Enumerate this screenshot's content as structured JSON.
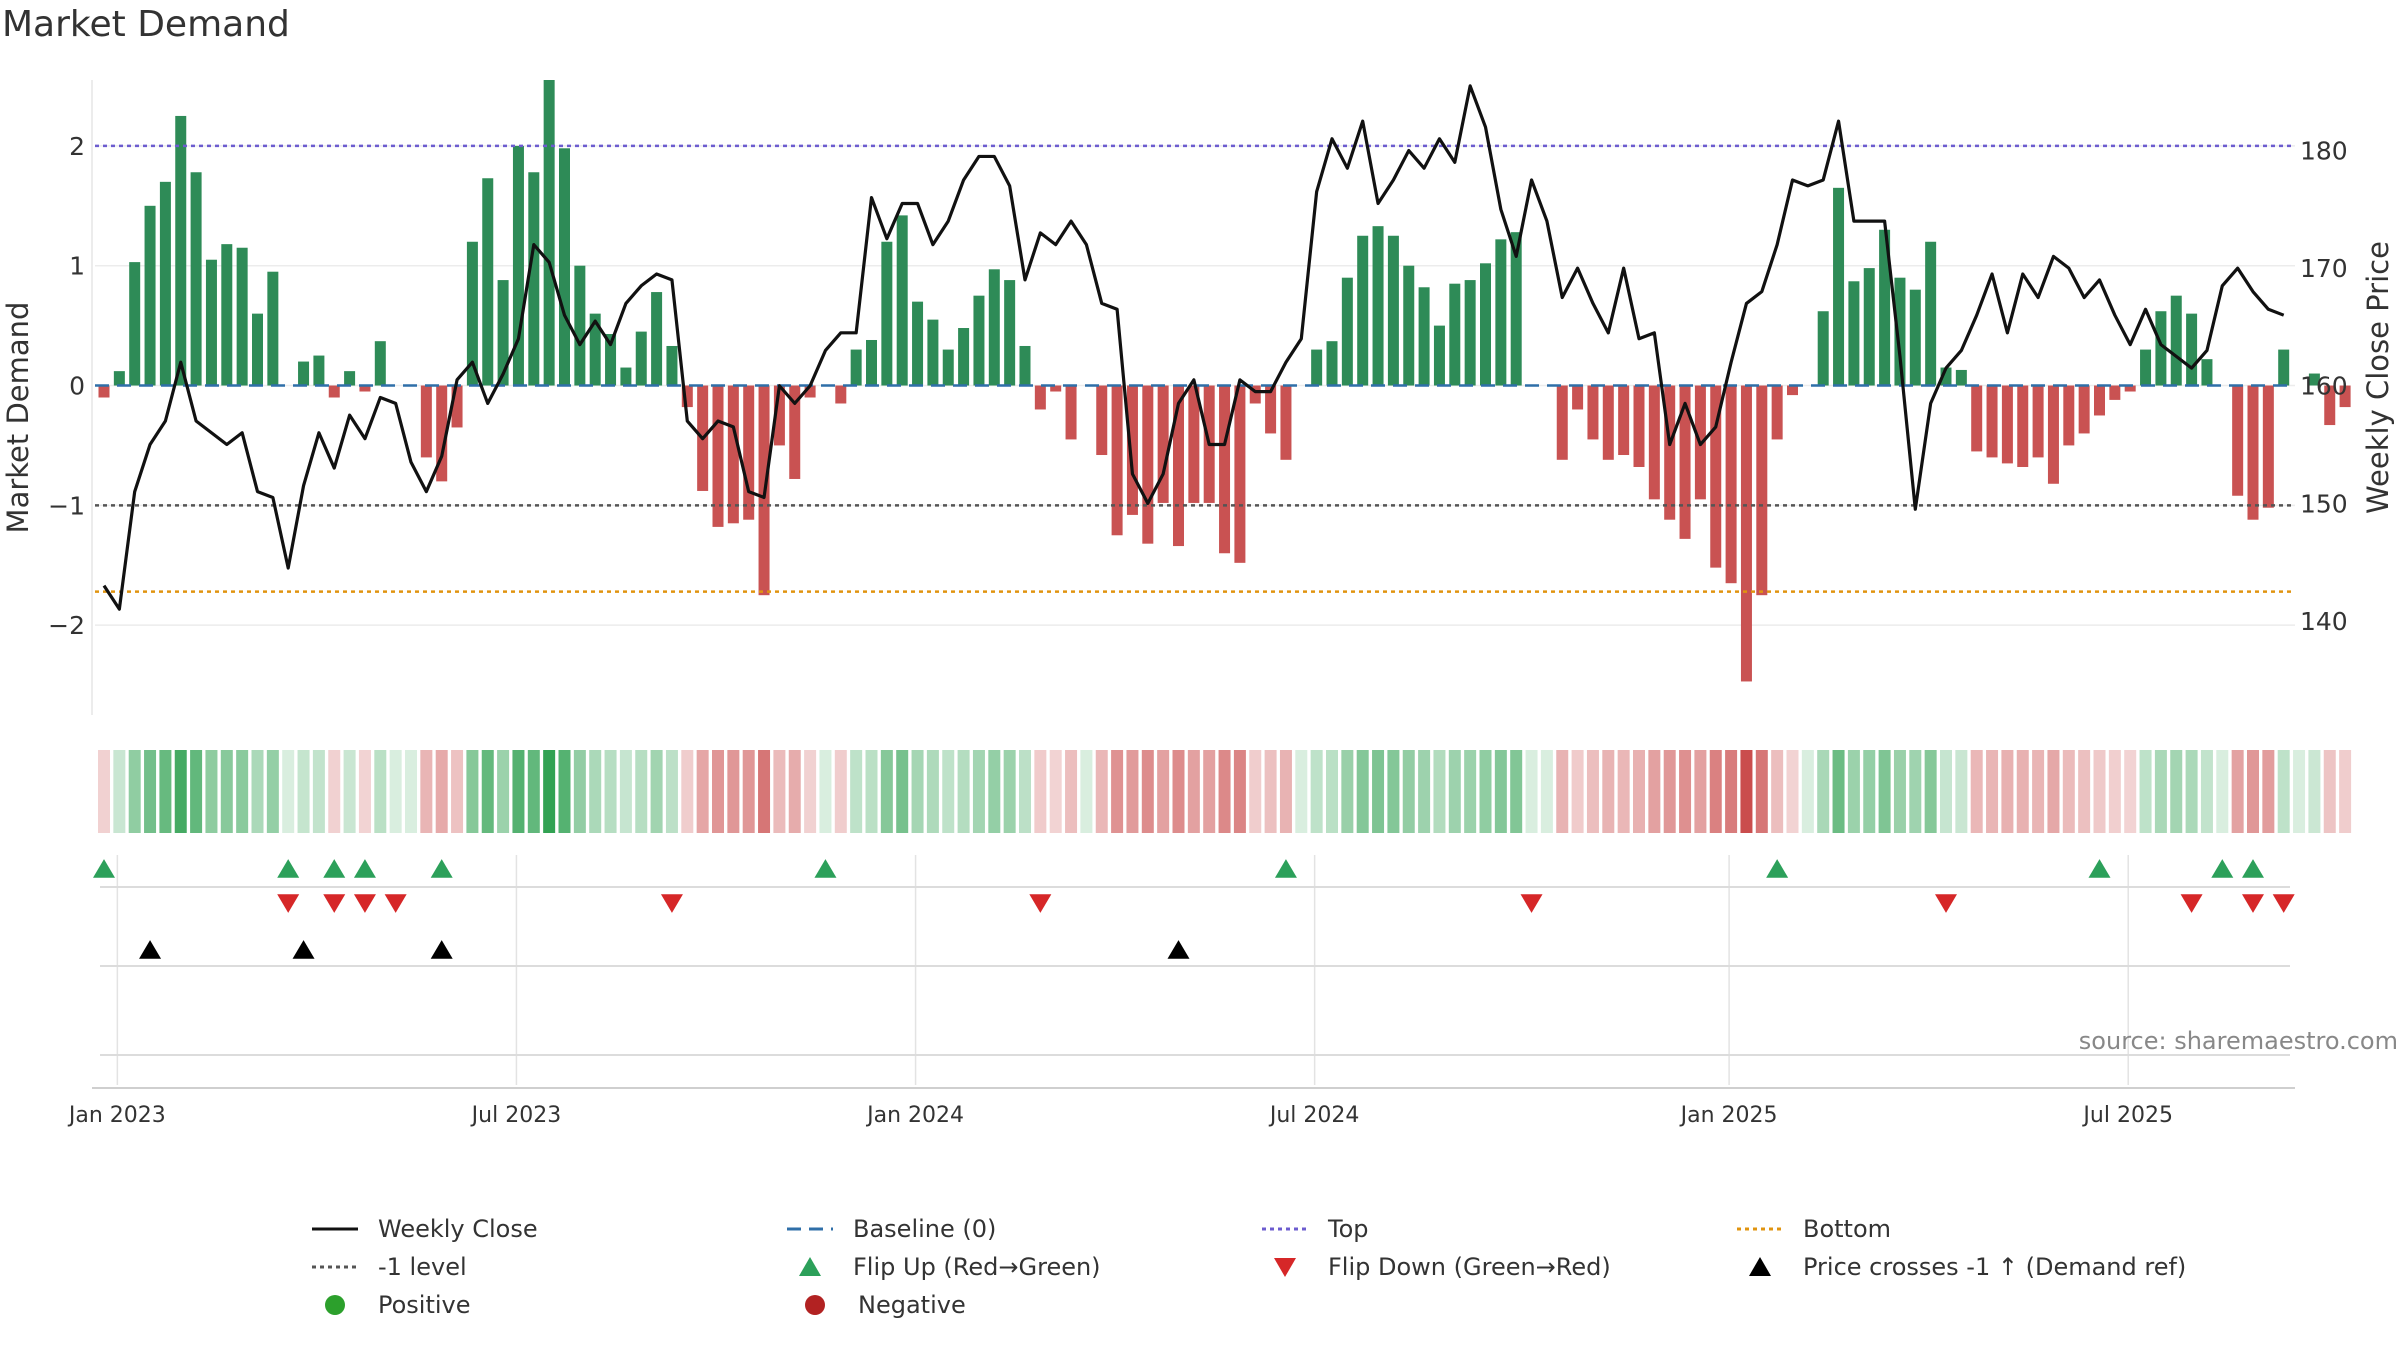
{
  "title": "Market Demand",
  "source": "source: sharemaestro.com",
  "chart_data": {
    "type": "bar",
    "title": "Market Demand",
    "ylabel_left": "Market Demand",
    "ylabel_right": "Weekly Close Price",
    "ylim_left": [
      -2.75,
      2.55
    ],
    "ylim_right": [
      132,
      186
    ],
    "yticks_left": [
      -2,
      -1,
      0,
      1,
      2
    ],
    "ytick_labels_left": [
      "−2",
      "−1",
      "0",
      "1",
      "2"
    ],
    "yticks_right": [
      140,
      150,
      160,
      170,
      180
    ],
    "reference_lines": {
      "top": 2,
      "level_minus1": -1,
      "bottom": -1.72,
      "baseline": 0
    },
    "x_ticks": [
      {
        "week": 1,
        "label": "Jan 2023"
      },
      {
        "week": 27,
        "label": "Jul 2023"
      },
      {
        "week": 53,
        "label": "Jan 2024"
      },
      {
        "week": 79,
        "label": "Jul 2024"
      },
      {
        "week": 106,
        "label": "Jan 2025"
      },
      {
        "week": 132,
        "label": "Jul 2025"
      }
    ],
    "demand": [
      -0.1,
      0.12,
      1.03,
      1.5,
      1.7,
      2.25,
      1.78,
      1.05,
      1.18,
      1.15,
      0.6,
      0.95,
      0,
      0.2,
      0.25,
      -0.1,
      0.12,
      -0.05,
      0.37,
      0,
      0,
      -0.6,
      -0.8,
      -0.35,
      1.2,
      1.73,
      0.88,
      2.0,
      1.78,
      2.55,
      1.98,
      1,
      0.6,
      0.43,
      0.15,
      0.45,
      0.78,
      0.33,
      -0.18,
      -0.88,
      -1.18,
      -1.15,
      -1.12,
      -1.75,
      -0.5,
      -0.78,
      -0.1,
      0,
      -0.15,
      0.3,
      0.38,
      1.2,
      1.42,
      0.7,
      0.55,
      0.3,
      0.48,
      0.75,
      0.97,
      0.88,
      0.33,
      -0.2,
      -0.05,
      -0.45,
      0,
      -0.58,
      -1.25,
      -1.08,
      -1.32,
      -0.98,
      -1.34,
      -0.98,
      -0.98,
      -1.4,
      -1.48,
      -0.15,
      -0.4,
      -0.62,
      0,
      0.3,
      0.37,
      0.9,
      1.25,
      1.33,
      1.25,
      1.0,
      0.82,
      0.5,
      0.85,
      0.88,
      1.02,
      1.22,
      1.28,
      0,
      0,
      -0.62,
      -0.2,
      -0.45,
      -0.62,
      -0.58,
      -0.68,
      -0.95,
      -1.12,
      -1.28,
      -0.95,
      -1.52,
      -1.65,
      -2.47,
      -1.75,
      -0.45,
      -0.08,
      0,
      0.62,
      1.65,
      0.87,
      0.98,
      1.3,
      0.9,
      0.8,
      1.2,
      0.15,
      0.13,
      -0.55,
      -0.6,
      -0.65,
      -0.68,
      -0.6,
      -0.82,
      -0.5,
      -0.4,
      -0.25,
      -0.12,
      -0.05,
      0.3,
      0.62,
      0.75,
      0.6,
      0.22,
      0,
      -0.92,
      -1.12,
      -1.02,
      0.3,
      0,
      0.1,
      -0.33,
      -0.18
    ],
    "weekly_close": [
      143,
      141,
      151,
      155,
      157,
      162,
      157,
      156,
      155,
      156,
      151,
      150.5,
      144.5,
      151.5,
      156,
      153,
      157.5,
      155.5,
      159,
      158.5,
      153.5,
      151,
      154,
      160.5,
      162,
      158.5,
      161,
      164,
      172,
      170.5,
      166,
      163.5,
      165.5,
      163.5,
      167,
      168.5,
      169.5,
      169,
      157,
      155.5,
      157,
      156.5,
      151,
      150.5,
      160,
      158.5,
      160,
      163,
      164.5,
      164.5,
      176,
      172.5,
      175.5,
      175.5,
      172,
      174,
      177.5,
      179.5,
      179.5,
      177,
      169,
      173,
      172,
      174,
      172,
      167,
      166.5,
      152.5,
      150,
      152.5,
      158.5,
      160.5,
      155,
      155,
      160.5,
      159.5,
      159.5,
      162,
      164,
      176.5,
      181,
      178.5,
      182.5,
      175.5,
      177.5,
      180,
      178.5,
      181,
      179,
      185.5,
      182,
      175,
      171,
      177.5,
      174,
      167.5,
      170,
      167,
      164.5,
      170,
      164,
      164.5,
      155,
      158.5,
      155,
      156.5,
      162,
      167,
      168,
      172,
      177.5,
      177,
      177.5,
      182.5,
      174,
      174,
      174,
      162.5,
      149.5,
      158.5,
      161.5,
      163,
      166,
      169.5,
      164.5,
      169.5,
      167.5,
      171,
      170,
      167.5,
      169,
      166,
      163.5,
      166.5,
      163.5,
      162.5,
      161.5,
      163,
      168.5,
      170,
      168,
      166.5,
      166
    ],
    "series": [
      {
        "name": "Weekly Close",
        "color": "#111111"
      },
      {
        "name": "Baseline (0)",
        "color": "#2f6fa8"
      },
      {
        "name": "Top",
        "color": "#6c5ccf"
      },
      {
        "name": "Bottom",
        "color": "#e09410"
      },
      {
        "name": "-1 level",
        "color": "#555555"
      },
      {
        "name": "Positive",
        "color": "#2e8b57"
      },
      {
        "name": "Negative",
        "color": "#c94848"
      }
    ],
    "flip_up_weeks": [
      0,
      12,
      15,
      17,
      22,
      47,
      77,
      109,
      130,
      138,
      140
    ],
    "flip_down_weeks": [
      12,
      15,
      17,
      19,
      37,
      61,
      93,
      120,
      136,
      140,
      142
    ],
    "price_cross_weeks": [
      3,
      13,
      22,
      70
    ]
  },
  "legend": [
    {
      "label": "Weekly Close",
      "symbol": "line",
      "color": "#111111"
    },
    {
      "label": "Baseline (0)",
      "symbol": "dash",
      "color": "#2f6fa8"
    },
    {
      "label": "Top",
      "symbol": "dot",
      "color": "#6c5ccf"
    },
    {
      "label": "Bottom",
      "symbol": "dot",
      "color": "#e09410"
    },
    {
      "label": "-1 level",
      "symbol": "dot",
      "color": "#555555"
    },
    {
      "label": "Flip Up (Red→Green)",
      "symbol": "tri-up",
      "color": "#2ca05a"
    },
    {
      "label": "Flip Down (Green→Red)",
      "symbol": "tri-down",
      "color": "#d62728"
    },
    {
      "label": "Price crosses -1 ↑ (Demand ref)",
      "symbol": "tri-up",
      "color": "#000000"
    },
    {
      "label": "Positive",
      "symbol": "circle",
      "color": "#2ca02c"
    },
    {
      "label": "Negative",
      "symbol": "circle",
      "color": "#b22222"
    }
  ]
}
